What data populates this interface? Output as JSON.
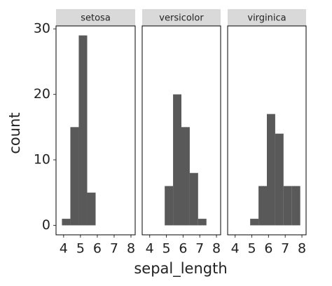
{
  "chart_data": {
    "type": "histogram",
    "xlabel": "sepal_length",
    "ylabel": "count",
    "bins": [
      3.9,
      4.4,
      4.9,
      5.4,
      5.9,
      6.4,
      6.9,
      7.4,
      7.9
    ],
    "facets": [
      {
        "name": "setosa",
        "values": [
          1,
          15,
          29,
          5,
          0,
          0,
          0,
          0
        ]
      },
      {
        "name": "versicolor",
        "values": [
          0,
          0,
          6,
          20,
          15,
          8,
          1,
          0
        ]
      },
      {
        "name": "virginica",
        "values": [
          0,
          0,
          1,
          6,
          17,
          14,
          6,
          6
        ]
      }
    ],
    "color": "#595959",
    "xlim": [
      3.55,
      8.25
    ],
    "xticks": [
      4,
      5,
      6,
      7,
      8
    ],
    "ylim": [
      -1.45,
      30.45
    ],
    "yticks": [
      0,
      10,
      20,
      30
    ]
  }
}
